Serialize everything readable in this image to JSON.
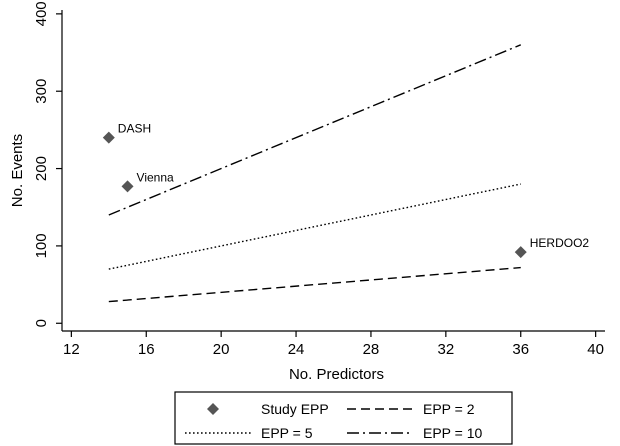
{
  "chart_data": {
    "type": "line",
    "xlabel": "No. Predictors",
    "ylabel": "No. Events",
    "xlim": [
      11.5,
      40.5
    ],
    "ylim": [
      -10,
      405
    ],
    "xticks": [
      12,
      16,
      20,
      24,
      28,
      32,
      36,
      40
    ],
    "yticks": [
      0,
      100,
      200,
      300,
      400
    ],
    "grid": false,
    "legend_position": "bottom",
    "series": [
      {
        "name": "Study EPP",
        "style": "diamond-markers",
        "color": "#555555",
        "points": [
          {
            "x": 14,
            "y": 240,
            "label": "DASH"
          },
          {
            "x": 15,
            "y": 177,
            "label": "Vienna"
          },
          {
            "x": 36,
            "y": 92,
            "label": "HERDOO2"
          }
        ]
      },
      {
        "name": "EPP = 2",
        "style": "dash",
        "color": "#000000",
        "x": [
          14,
          36
        ],
        "y": [
          28,
          72
        ]
      },
      {
        "name": "EPP = 5",
        "style": "dot",
        "color": "#000000",
        "x": [
          14,
          36
        ],
        "y": [
          70,
          180
        ]
      },
      {
        "name": "EPP = 10",
        "style": "dash-dot",
        "color": "#000000",
        "x": [
          14,
          36
        ],
        "y": [
          140,
          360
        ]
      }
    ]
  }
}
